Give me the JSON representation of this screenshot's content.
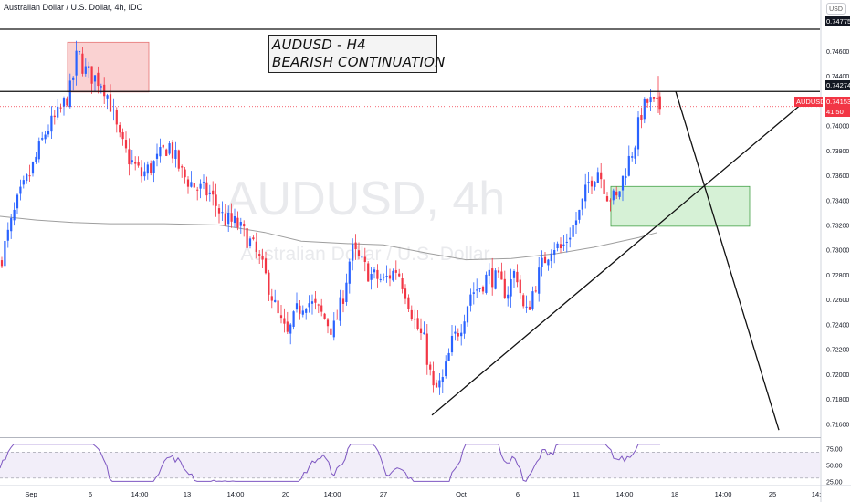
{
  "title": "Australian Dollar / U.S. Dollar, 4h, IDC",
  "currency_button": "USD",
  "symbol_tag": "AUDUSD",
  "annotation": {
    "line1": "AUDUSD - H4",
    "line2": "BEARISH CONTINUATION"
  },
  "watermark": {
    "line1": "AUDUSD, 4h",
    "line2": "Australian Dollar / U.S. Dollar"
  },
  "price_tags": {
    "upper": "0.74775",
    "lower": "0.74274",
    "current": "0.74153",
    "countdown": "41:50"
  },
  "colors": {
    "up": "#2962ff",
    "down": "#f23645",
    "ma": "#9e9e9e",
    "rsi": "#7e57c2",
    "rsi_band": "#ede7f6",
    "supply_zone": "#f8c3c3",
    "demand_zone": "#c8ecc8"
  },
  "chart_data": [
    {
      "type": "candlestick",
      "symbol": "AUDUSD",
      "timeframe": "4h",
      "ylim": [
        0.715,
        0.749
      ],
      "y_ticks": [
        "0.74600",
        "0.74400",
        "0.74200",
        "0.74000",
        "0.73800",
        "0.73600",
        "0.73400",
        "0.73200",
        "0.73000",
        "0.72800",
        "0.72600",
        "0.72400",
        "0.72200",
        "0.72000",
        "0.71800",
        "0.71600"
      ],
      "x_ticks": [
        "Sep",
        "6",
        "14:00",
        "13",
        "14:00",
        "20",
        "14:00",
        "27",
        "Oct",
        "6",
        "11",
        "14:00",
        "18",
        "14:00",
        "25",
        "14:"
      ],
      "close_path": [
        [
          0,
          0.729
        ],
        [
          8,
          0.731
        ],
        [
          20,
          0.734
        ],
        [
          35,
          0.7365
        ],
        [
          50,
          0.7395
        ],
        [
          65,
          0.741
        ],
        [
          78,
          0.743
        ],
        [
          85,
          0.746
        ],
        [
          92,
          0.7445
        ],
        [
          100,
          0.744
        ],
        [
          112,
          0.7435
        ],
        [
          120,
          0.742
        ],
        [
          130,
          0.739
        ],
        [
          140,
          0.7375
        ],
        [
          155,
          0.736
        ],
        [
          170,
          0.737
        ],
        [
          185,
          0.7385
        ],
        [
          200,
          0.736
        ],
        [
          215,
          0.735
        ],
        [
          230,
          0.7345
        ],
        [
          245,
          0.7325
        ],
        [
          260,
          0.732
        ],
        [
          275,
          0.7305
        ],
        [
          285,
          0.729
        ],
        [
          295,
          0.727
        ],
        [
          305,
          0.7245
        ],
        [
          315,
          0.723
        ],
        [
          325,
          0.725
        ],
        [
          335,
          0.726
        ],
        [
          350,
          0.725
        ],
        [
          365,
          0.7235
        ],
        [
          375,
          0.726
        ],
        [
          385,
          0.73
        ],
        [
          395,
          0.729
        ],
        [
          405,
          0.728
        ],
        [
          420,
          0.7275
        ],
        [
          435,
          0.7285
        ],
        [
          445,
          0.7265
        ],
        [
          455,
          0.724
        ],
        [
          465,
          0.7225
        ],
        [
          475,
          0.7185
        ],
        [
          485,
          0.7195
        ],
        [
          495,
          0.7225
        ],
        [
          505,
          0.724
        ],
        [
          515,
          0.7265
        ],
        [
          525,
          0.727
        ],
        [
          535,
          0.728
        ],
        [
          545,
          0.7275
        ],
        [
          555,
          0.7265
        ],
        [
          565,
          0.7285
        ],
        [
          575,
          0.7245
        ],
        [
          585,
          0.727
        ],
        [
          595,
          0.729
        ],
        [
          605,
          0.7305
        ],
        [
          615,
          0.73
        ],
        [
          625,
          0.7315
        ],
        [
          635,
          0.733
        ],
        [
          645,
          0.7355
        ],
        [
          655,
          0.7365
        ],
        [
          665,
          0.7345
        ],
        [
          675,
          0.734
        ],
        [
          685,
          0.7365
        ],
        [
          695,
          0.7385
        ],
        [
          702,
          0.741
        ],
        [
          710,
          0.742
        ],
        [
          718,
          0.7415
        ],
        [
          725,
          0.7415
        ]
      ],
      "moving_average": [
        [
          0,
          0.7327
        ],
        [
          40,
          0.7324
        ],
        [
          80,
          0.7322
        ],
        [
          120,
          0.7321
        ],
        [
          180,
          0.7321
        ],
        [
          240,
          0.732
        ],
        [
          290,
          0.7314
        ],
        [
          330,
          0.7307
        ],
        [
          380,
          0.7305
        ],
        [
          420,
          0.7304
        ],
        [
          470,
          0.7297
        ],
        [
          510,
          0.7292
        ],
        [
          560,
          0.7293
        ],
        [
          610,
          0.7297
        ],
        [
          650,
          0.7302
        ],
        [
          700,
          0.731
        ],
        [
          720,
          0.7314
        ]
      ],
      "supply_zone": {
        "price_top": 0.7467,
        "price_bottom": 0.7427
      },
      "demand_zone": {
        "price_top": 0.7351,
        "price_bottom": 0.7319
      },
      "horizontal_levels": [
        0.74775,
        0.74274
      ],
      "current_price": 0.74153,
      "trendline_low": 0.7167,
      "projection_low": 0.7155
    },
    {
      "type": "line",
      "name": "RSI",
      "ylim": [
        20,
        90
      ],
      "y_ticks": [
        "75.00",
        "50.00",
        "25.00"
      ],
      "band": [
        30,
        70
      ]
    }
  ]
}
